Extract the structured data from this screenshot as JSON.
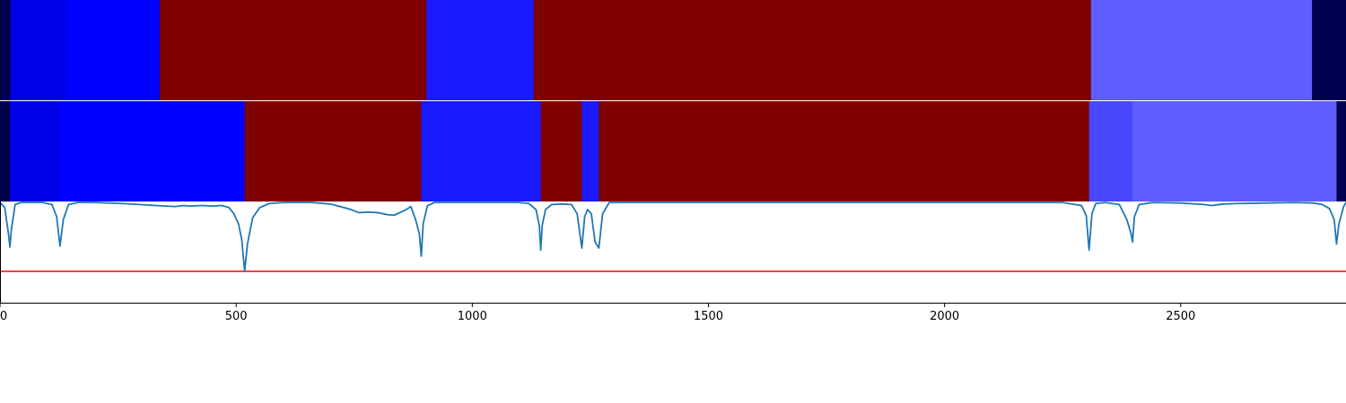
{
  "chart_data": [
    {
      "type": "heatmap",
      "xlim": [
        0,
        2850
      ],
      "segments": [
        {
          "start": 0,
          "end": 22,
          "color": "#00004c"
        },
        {
          "start": 22,
          "end": 140,
          "color": "#0000e6"
        },
        {
          "start": 140,
          "end": 338,
          "color": "#0000ff"
        },
        {
          "start": 338,
          "end": 903,
          "color": "#7f0000"
        },
        {
          "start": 903,
          "end": 1130,
          "color": "#1a1aff"
        },
        {
          "start": 1130,
          "end": 2310,
          "color": "#7f0000"
        },
        {
          "start": 2310,
          "end": 2778,
          "color": "#5e5eff"
        },
        {
          "start": 2778,
          "end": 2850,
          "color": "#000050"
        }
      ]
    },
    {
      "type": "heatmap",
      "xlim": [
        0,
        2850
      ],
      "segments": [
        {
          "start": 0,
          "end": 21,
          "color": "#00004c"
        },
        {
          "start": 21,
          "end": 127,
          "color": "#0000e6"
        },
        {
          "start": 127,
          "end": 518,
          "color": "#0000ff"
        },
        {
          "start": 518,
          "end": 892,
          "color": "#7f0000"
        },
        {
          "start": 892,
          "end": 1145,
          "color": "#1a1aff"
        },
        {
          "start": 1145,
          "end": 1232,
          "color": "#7f0000"
        },
        {
          "start": 1232,
          "end": 1268,
          "color": "#1a1aff"
        },
        {
          "start": 1268,
          "end": 2306,
          "color": "#7f0000"
        },
        {
          "start": 2306,
          "end": 2398,
          "color": "#4848ff"
        },
        {
          "start": 2398,
          "end": 2830,
          "color": "#5e5eff"
        },
        {
          "start": 2830,
          "end": 2850,
          "color": "#000050"
        }
      ]
    },
    {
      "type": "line",
      "xlim": [
        0,
        2850
      ],
      "ylim": [
        0,
        1
      ],
      "xticks": [
        "0",
        "500",
        "1000",
        "1500",
        "2000",
        "2500"
      ],
      "xtick_values": [
        0,
        500,
        1000,
        1500,
        2000,
        2500
      ],
      "threshold": 0.31,
      "series": [
        {
          "color": "#1f77b4",
          "x": [
            0,
            10,
            18,
            21,
            24,
            32,
            45,
            60,
            90,
            110,
            120,
            127,
            134,
            145,
            165,
            200,
            260,
            330,
            370,
            390,
            400,
            430,
            450,
            470,
            485,
            495,
            505,
            512,
            518,
            524,
            535,
            550,
            570,
            600,
            660,
            700,
            720,
            740,
            760,
            780,
            800,
            820,
            835,
            860,
            870,
            880,
            888,
            892,
            896,
            905,
            920,
            950,
            1000,
            1050,
            1080,
            1100,
            1120,
            1135,
            1142,
            1145,
            1148,
            1155,
            1168,
            1190,
            1210,
            1222,
            1232,
            1238,
            1244,
            1252,
            1260,
            1268,
            1276,
            1290,
            1340,
            1500,
            1800,
            2100,
            2250,
            2290,
            2300,
            2306,
            2312,
            2320,
            2340,
            2370,
            2386,
            2395,
            2398,
            2402,
            2412,
            2440,
            2500,
            2550,
            2565,
            2590,
            2620,
            2680,
            2740,
            2780,
            2800,
            2815,
            2825,
            2830,
            2835,
            2845,
            2850
          ],
          "y": [
            0.99,
            0.94,
            0.68,
            0.55,
            0.72,
            0.97,
            0.99,
            0.99,
            0.99,
            0.97,
            0.85,
            0.56,
            0.82,
            0.97,
            0.99,
            0.99,
            0.98,
            0.96,
            0.95,
            0.96,
            0.955,
            0.96,
            0.955,
            0.96,
            0.94,
            0.88,
            0.78,
            0.62,
            0.31,
            0.58,
            0.84,
            0.94,
            0.98,
            0.99,
            0.99,
            0.975,
            0.95,
            0.925,
            0.89,
            0.895,
            0.89,
            0.87,
            0.865,
            0.92,
            0.95,
            0.82,
            0.68,
            0.46,
            0.78,
            0.96,
            0.99,
            0.99,
            0.99,
            0.99,
            0.99,
            0.99,
            0.98,
            0.92,
            0.76,
            0.52,
            0.76,
            0.92,
            0.97,
            0.975,
            0.97,
            0.88,
            0.54,
            0.85,
            0.92,
            0.88,
            0.6,
            0.54,
            0.88,
            0.99,
            0.99,
            0.99,
            0.99,
            0.99,
            0.99,
            0.96,
            0.86,
            0.52,
            0.88,
            0.98,
            0.99,
            0.97,
            0.82,
            0.68,
            0.6,
            0.85,
            0.97,
            0.99,
            0.985,
            0.97,
            0.96,
            0.975,
            0.98,
            0.985,
            0.99,
            0.985,
            0.97,
            0.93,
            0.82,
            0.58,
            0.78,
            0.95,
            0.99
          ]
        }
      ]
    }
  ]
}
